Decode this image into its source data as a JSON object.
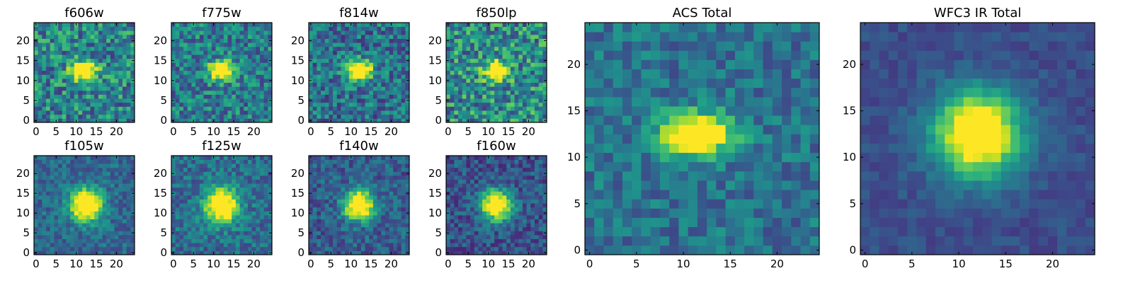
{
  "figure": {
    "description_free": true
  },
  "chart_data": [
    {
      "type": "heatmap",
      "title": "f606w",
      "xlabel": "",
      "ylabel": "",
      "xlim": [
        0,
        25
      ],
      "ylim": [
        0,
        25
      ],
      "xticks": [
        "0",
        "5",
        "10",
        "15",
        "20"
      ],
      "yticks": [
        "0",
        "5",
        "10",
        "15",
        "20"
      ],
      "colormap": "viridis",
      "grid_size": 25,
      "source": {
        "center": [
          12,
          12.5
        ],
        "sigma_x": 2.2,
        "sigma_y": 1.6,
        "peak": 1.0,
        "background": 0.45,
        "noise": 0.28,
        "seed": 11
      }
    },
    {
      "type": "heatmap",
      "title": "f775w",
      "xlabel": "",
      "ylabel": "",
      "xlim": [
        0,
        25
      ],
      "ylim": [
        0,
        25
      ],
      "xticks": [
        "0",
        "5",
        "10",
        "15",
        "20"
      ],
      "yticks": [
        "0",
        "5",
        "10",
        "15",
        "20"
      ],
      "colormap": "viridis",
      "grid_size": 25,
      "source": {
        "center": [
          12,
          12.5
        ],
        "sigma_x": 2.2,
        "sigma_y": 1.6,
        "peak": 1.0,
        "background": 0.42,
        "noise": 0.24,
        "seed": 23
      }
    },
    {
      "type": "heatmap",
      "title": "f814w",
      "xlabel": "",
      "ylabel": "",
      "xlim": [
        0,
        25
      ],
      "ylim": [
        0,
        25
      ],
      "xticks": [
        "0",
        "5",
        "10",
        "15",
        "20"
      ],
      "yticks": [
        "0",
        "5",
        "10",
        "15",
        "20"
      ],
      "colormap": "viridis",
      "grid_size": 25,
      "source": {
        "center": [
          12,
          12.5
        ],
        "sigma_x": 2.2,
        "sigma_y": 1.7,
        "peak": 1.0,
        "background": 0.38,
        "noise": 0.24,
        "seed": 37
      }
    },
    {
      "type": "heatmap",
      "title": "f850lp",
      "xlabel": "",
      "ylabel": "",
      "xlim": [
        0,
        25
      ],
      "ylim": [
        0,
        25
      ],
      "xticks": [
        "0",
        "5",
        "10",
        "15",
        "20"
      ],
      "yticks": [
        "0",
        "5",
        "10",
        "15",
        "20"
      ],
      "colormap": "viridis",
      "grid_size": 25,
      "source": {
        "center": [
          12,
          12.5
        ],
        "sigma_x": 2.0,
        "sigma_y": 1.6,
        "peak": 1.0,
        "background": 0.48,
        "noise": 0.3,
        "seed": 41
      }
    },
    {
      "type": "heatmap",
      "title": "f105w",
      "xlabel": "",
      "ylabel": "",
      "xlim": [
        0,
        25
      ],
      "ylim": [
        0,
        25
      ],
      "xticks": [
        "0",
        "5",
        "10",
        "15",
        "20"
      ],
      "yticks": [
        "0",
        "5",
        "10",
        "15",
        "20"
      ],
      "colormap": "viridis",
      "grid_size": 25,
      "source": {
        "center": [
          12.5,
          12
        ],
        "sigma_x": 2.8,
        "sigma_y": 2.8,
        "peak": 1.0,
        "background": 0.34,
        "noise": 0.14,
        "seed": 53
      }
    },
    {
      "type": "heatmap",
      "title": "f125w",
      "xlabel": "",
      "ylabel": "",
      "xlim": [
        0,
        25
      ],
      "ylim": [
        0,
        25
      ],
      "xticks": [
        "0",
        "5",
        "10",
        "15",
        "20"
      ],
      "yticks": [
        "0",
        "5",
        "10",
        "15",
        "20"
      ],
      "colormap": "viridis",
      "grid_size": 25,
      "source": {
        "center": [
          12,
          12
        ],
        "sigma_x": 2.8,
        "sigma_y": 3.0,
        "peak": 1.0,
        "background": 0.36,
        "noise": 0.16,
        "seed": 67
      }
    },
    {
      "type": "heatmap",
      "title": "f140w",
      "xlabel": "",
      "ylabel": "",
      "xlim": [
        0,
        25
      ],
      "ylim": [
        0,
        25
      ],
      "xticks": [
        "0",
        "5",
        "10",
        "15",
        "20"
      ],
      "yticks": [
        "0",
        "5",
        "10",
        "15",
        "20"
      ],
      "colormap": "viridis",
      "grid_size": 25,
      "source": {
        "center": [
          12,
          12
        ],
        "sigma_x": 2.6,
        "sigma_y": 2.6,
        "peak": 1.0,
        "background": 0.3,
        "noise": 0.16,
        "seed": 79
      }
    },
    {
      "type": "heatmap",
      "title": "f160w",
      "xlabel": "",
      "ylabel": "",
      "xlim": [
        0,
        25
      ],
      "ylim": [
        0,
        25
      ],
      "xticks": [
        "0",
        "5",
        "10",
        "15",
        "20"
      ],
      "yticks": [
        "0",
        "5",
        "10",
        "15",
        "20"
      ],
      "colormap": "viridis",
      "grid_size": 25,
      "source": {
        "center": [
          12,
          12
        ],
        "sigma_x": 2.6,
        "sigma_y": 2.6,
        "peak": 1.0,
        "background": 0.26,
        "noise": 0.16,
        "seed": 97
      }
    },
    {
      "type": "heatmap",
      "title": "ACS Total",
      "xlabel": "",
      "ylabel": "",
      "xlim": [
        0,
        25
      ],
      "ylim": [
        0,
        25
      ],
      "xticks": [
        "0",
        "5",
        "10",
        "15",
        "20"
      ],
      "yticks": [
        "0",
        "5",
        "10",
        "15",
        "20"
      ],
      "colormap": "viridis",
      "grid_size": 25,
      "source": {
        "center": [
          11.5,
          12.5
        ],
        "sigma_x": 2.6,
        "sigma_y": 1.6,
        "peak": 1.0,
        "background": 0.38,
        "noise": 0.16,
        "seed": 131
      }
    },
    {
      "type": "heatmap",
      "title": "WFC3 IR Total",
      "xlabel": "",
      "ylabel": "",
      "xlim": [
        0,
        25
      ],
      "ylim": [
        0,
        25
      ],
      "xticks": [
        "0",
        "5",
        "10",
        "15",
        "20"
      ],
      "yticks": [
        "0",
        "5",
        "10",
        "15",
        "20"
      ],
      "colormap": "viridis",
      "grid_size": 25,
      "source": {
        "center": [
          12,
          12.5
        ],
        "sigma_x": 3.2,
        "sigma_y": 3.2,
        "peak": 1.0,
        "background": 0.24,
        "noise": 0.07,
        "seed": 173
      }
    }
  ]
}
